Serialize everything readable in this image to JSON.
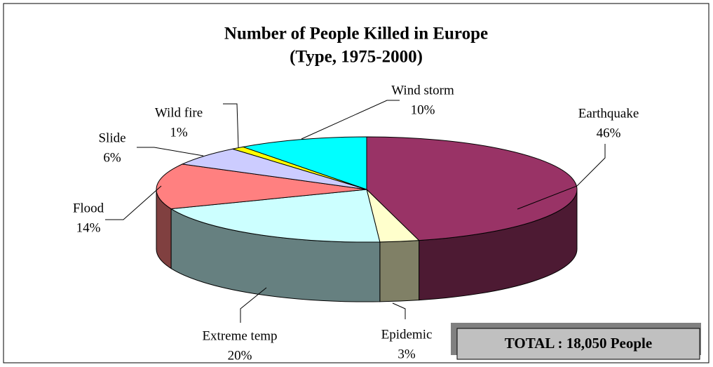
{
  "chart_data": {
    "type": "pie",
    "title": "Number of People Killed in Europe",
    "subtitle": "(Type, 1975-2000)",
    "categories": [
      "Earthquake",
      "Epidemic",
      "Extreme temp",
      "Flood",
      "Slide",
      "Wild fire",
      "Wind storm"
    ],
    "values": [
      46,
      3,
      20,
      14,
      6,
      1,
      10
    ],
    "value_labels": [
      "46%",
      "3%",
      "20%",
      "14%",
      "6%",
      "1%",
      "10%"
    ],
    "colors": [
      "#993366",
      "#ffffcc",
      "#ccffff",
      "#ff8080",
      "#ccccff",
      "#ffff00",
      "#00ffff"
    ],
    "annotation": "TOTAL : 18,050 People"
  }
}
